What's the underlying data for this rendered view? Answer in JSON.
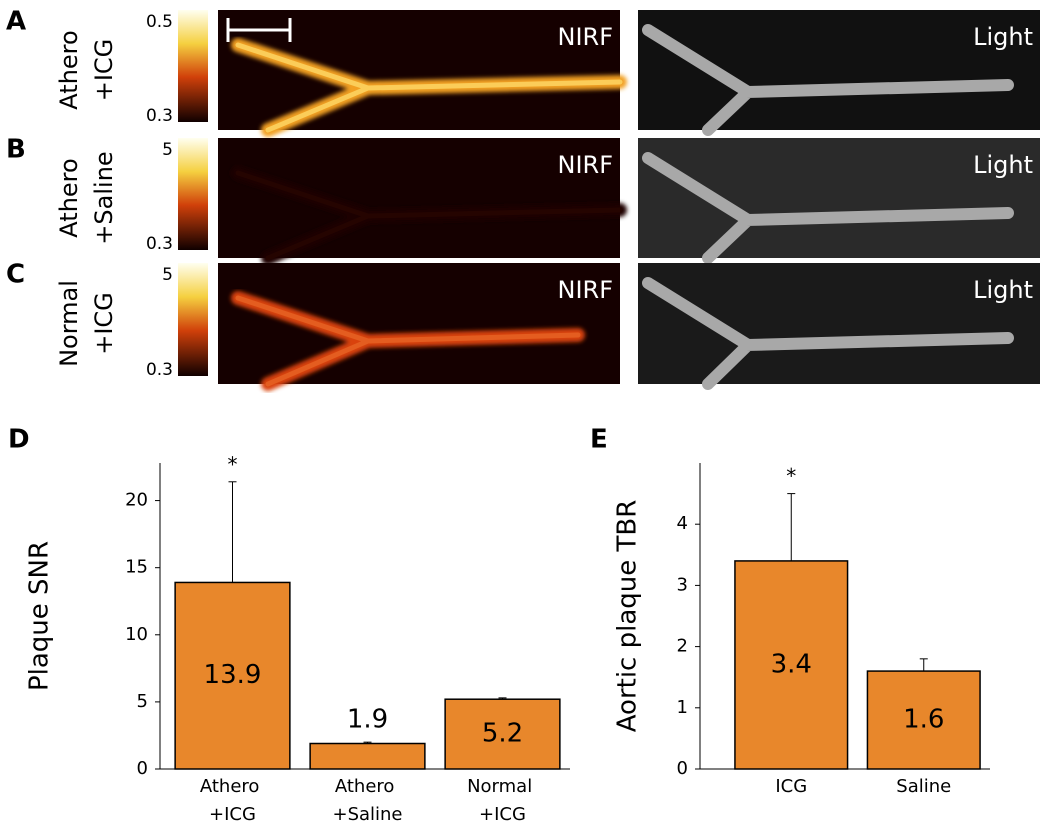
{
  "panels": [
    {
      "letter": "A",
      "row_label": [
        "Athero",
        "+ICG"
      ],
      "colorbar": {
        "max": "0.5",
        "min": "0.3"
      },
      "images": [
        "NIRF",
        "Light"
      ]
    },
    {
      "letter": "B",
      "row_label": [
        "Athero",
        "+Saline"
      ],
      "colorbar": {
        "max": "5",
        "min": "0.3"
      },
      "images": [
        "NIRF",
        "Light"
      ]
    },
    {
      "letter": "C",
      "row_label": [
        "Normal",
        "+ICG"
      ],
      "colorbar": {
        "max": "5",
        "min": "0.3"
      },
      "images": [
        "NIRF",
        "Light"
      ]
    }
  ],
  "chart_data": [
    {
      "type": "bar",
      "letter": "D",
      "ylabel": "Plaque SNR",
      "categories": [
        "Athero +ICG",
        "Athero +Saline",
        "Normal +ICG"
      ],
      "values": [
        13.9,
        1.9,
        5.2
      ],
      "errors": [
        7.5,
        0.1,
        0.1
      ],
      "significance": [
        "*",
        null,
        null
      ],
      "color": "#e8872b",
      "ylim": [
        0,
        22.8
      ],
      "yticks": [
        0,
        5,
        10,
        15,
        20
      ]
    },
    {
      "type": "bar",
      "letter": "E",
      "ylabel": "Aortic plaque TBR",
      "categories": [
        "ICG",
        "Saline"
      ],
      "values": [
        3.4,
        1.6
      ],
      "errors": [
        1.1,
        0.2
      ],
      "significance": [
        "*",
        null
      ],
      "color": "#e8872b",
      "ylim": [
        0,
        5
      ],
      "yticks": [
        0,
        1,
        2,
        3,
        4
      ]
    }
  ]
}
